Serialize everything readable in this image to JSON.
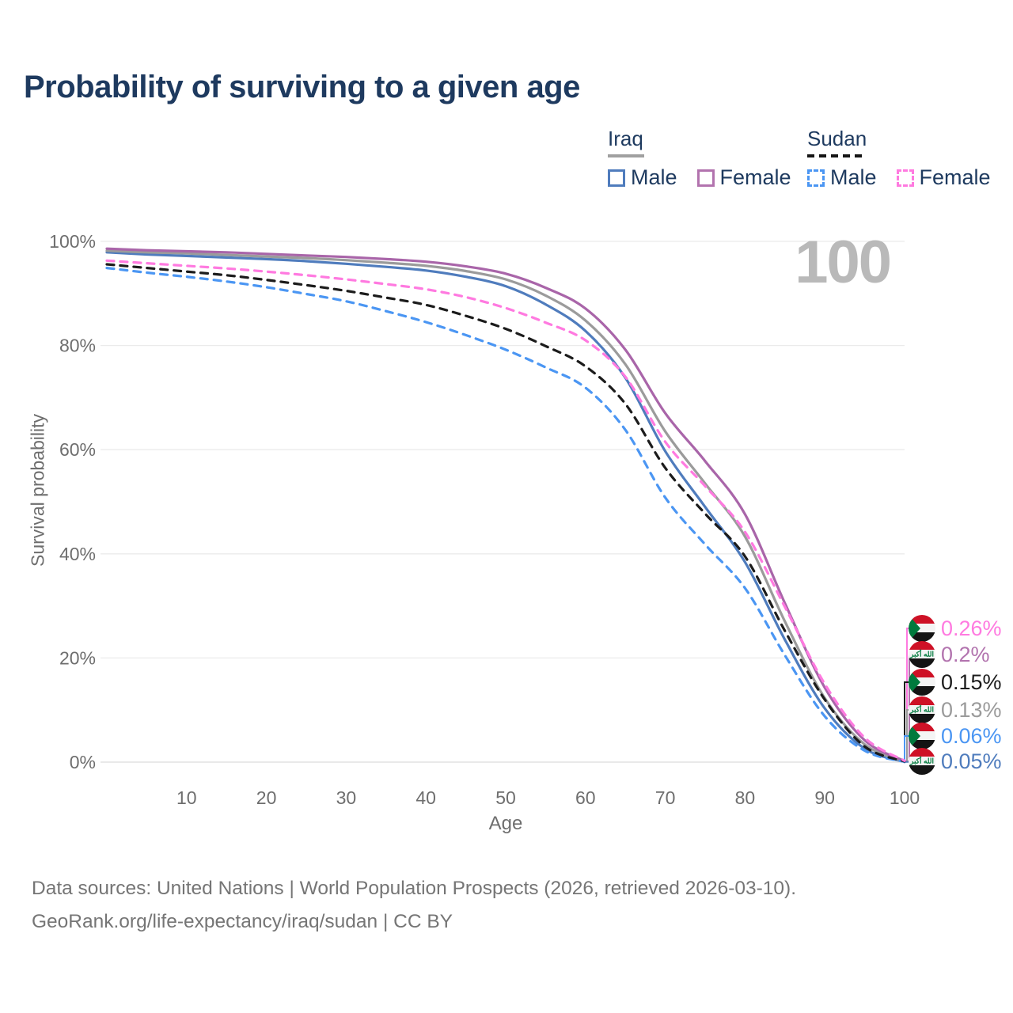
{
  "watermark_age": "100",
  "legend": {
    "groups": [
      {
        "country": "Iraq",
        "line_style": "solid",
        "underline_color": "#a0a0a0",
        "items": [
          {
            "label": "Male",
            "color": "#4f7cbd",
            "dashed": false
          },
          {
            "label": "Female",
            "color": "#b273ae",
            "dashed": false
          }
        ]
      },
      {
        "country": "Sudan",
        "line_style": "dashed",
        "underline_color": "#151515",
        "items": [
          {
            "label": "Male",
            "color": "#4b96f3",
            "dashed": true
          },
          {
            "label": "Female",
            "color": "#ff7ae0",
            "dashed": true
          }
        ]
      }
    ]
  },
  "chart_data": {
    "type": "line",
    "title": "Probability of surviving to a given age",
    "xlabel": "Age",
    "ylabel": "Survival probability",
    "xlim": [
      0,
      100
    ],
    "ylim": [
      0,
      100
    ],
    "grid": "horizontal",
    "legend_position": "top-right",
    "x_ticks": [
      10,
      20,
      30,
      40,
      50,
      60,
      70,
      80,
      90,
      100
    ],
    "y_ticks": [
      {
        "value": 0,
        "label": "0%"
      },
      {
        "value": 20,
        "label": "20%"
      },
      {
        "value": 40,
        "label": "40%"
      },
      {
        "value": 60,
        "label": "60%"
      },
      {
        "value": 80,
        "label": "80%"
      },
      {
        "value": 100,
        "label": "100%"
      }
    ],
    "x": [
      0,
      5,
      10,
      15,
      20,
      25,
      30,
      35,
      40,
      45,
      50,
      55,
      60,
      65,
      70,
      75,
      80,
      85,
      90,
      95,
      100
    ],
    "series": [
      {
        "name": "Iraq Male",
        "country": "Iraq",
        "color": "#4f7cbd",
        "dashed": false,
        "values": [
          97.9,
          97.5,
          97.2,
          96.9,
          96.6,
          96.2,
          95.7,
          95.1,
          94.4,
          93.2,
          91.4,
          87.9,
          82.8,
          73.8,
          59.7,
          49.0,
          38.4,
          23.5,
          10.3,
          2.6,
          0.05
        ]
      },
      {
        "name": "Iraq",
        "country": "Iraq",
        "color": "#9b9b9b",
        "dashed": false,
        "values": [
          98.2,
          97.9,
          97.7,
          97.4,
          97.1,
          96.8,
          96.4,
          95.9,
          95.3,
          94.3,
          92.7,
          89.6,
          84.8,
          76.4,
          63.5,
          53.5,
          43.3,
          27.0,
          12.3,
          3.4,
          0.13
        ]
      },
      {
        "name": "Iraq Female",
        "country": "Iraq",
        "color": "#a965a9",
        "dashed": false,
        "values": [
          98.6,
          98.3,
          98.1,
          97.9,
          97.6,
          97.3,
          97.0,
          96.6,
          96.1,
          95.2,
          93.8,
          91.1,
          87.1,
          79.2,
          67.0,
          57.8,
          47.6,
          30.5,
          14.3,
          4.2,
          0.2
        ]
      },
      {
        "name": "Sudan Male",
        "country": "Sudan",
        "color": "#4b96f3",
        "dashed": true,
        "values": [
          94.9,
          94.0,
          93.2,
          92.3,
          91.2,
          89.9,
          88.5,
          86.6,
          84.5,
          82.0,
          79.2,
          75.8,
          71.9,
          63.8,
          50.8,
          41.8,
          33.4,
          20.5,
          8.8,
          2.2,
          0.06
        ]
      },
      {
        "name": "Sudan",
        "country": "Sudan",
        "color": "#1c1c1c",
        "dashed": true,
        "values": [
          95.6,
          94.9,
          94.2,
          93.5,
          92.6,
          91.6,
          90.5,
          89.2,
          87.8,
          85.7,
          83.2,
          79.9,
          76.0,
          68.8,
          56.5,
          47.7,
          39.5,
          25.2,
          12.0,
          3.0,
          0.15
        ]
      },
      {
        "name": "Sudan Female",
        "country": "Sudan",
        "color": "#ff7ae0",
        "dashed": true,
        "values": [
          96.3,
          95.8,
          95.3,
          94.8,
          94.2,
          93.5,
          92.7,
          91.8,
          90.8,
          89.3,
          87.2,
          84.4,
          81.0,
          74.0,
          61.5,
          53.0,
          44.2,
          29.8,
          15.0,
          4.7,
          0.26
        ]
      }
    ],
    "end_labels": [
      {
        "flag": "sudan",
        "value": "0.26%",
        "series": "Sudan Female",
        "color": "#ff7ae0"
      },
      {
        "flag": "iraq",
        "value": "0.2%",
        "series": "Iraq Female",
        "color": "#b273ae"
      },
      {
        "flag": "sudan",
        "value": "0.15%",
        "series": "Sudan",
        "color": "#1c1c1c"
      },
      {
        "flag": "iraq",
        "value": "0.13%",
        "series": "Iraq",
        "color": "#9b9b9b"
      },
      {
        "flag": "sudan",
        "value": "0.06%",
        "series": "Sudan Male",
        "color": "#4b96f3"
      },
      {
        "flag": "iraq",
        "value": "0.05%",
        "series": "Iraq Male",
        "color": "#4f7cbd"
      }
    ]
  },
  "flags": {
    "red": "#ce1126",
    "white": "#f4f4f4",
    "black": "#141414",
    "green": "#007a3d",
    "iraq_script": "الله أكبر"
  },
  "footer": {
    "line1": "Data sources: United Nations | World Population Prospects (2026, retrieved 2026-03-10).",
    "line2": "GeoRank.org/life-expectancy/iraq/sudan | CC BY"
  }
}
